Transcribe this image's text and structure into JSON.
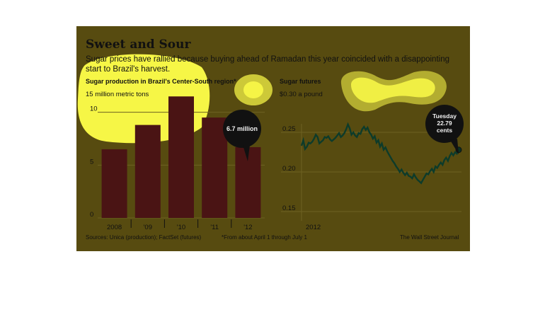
{
  "header": {
    "title": "Sweet and Sour",
    "subtitle": "Sugar prices have rallied because buying ahead of Ramadan this year coincided with a disappointing start to Brazil's harvest."
  },
  "colors": {
    "background": "#574b10",
    "bar": "#4a1414",
    "line": "#0d3b2a",
    "highlight": "#ffff4a",
    "callout": "#111111"
  },
  "chart_data": [
    {
      "type": "bar",
      "title": "Sugar production in Brazil's Center-South region*",
      "unit_label": "15 million metric tons",
      "categories": [
        "2008",
        "'09",
        "'10",
        "'11",
        "'12"
      ],
      "values": [
        6.5,
        8.8,
        11.5,
        9.5,
        6.7
      ],
      "ylim": [
        0,
        15
      ],
      "yticks": [
        "0",
        "5",
        "10"
      ],
      "ytick_values": [
        0,
        5,
        10
      ],
      "callout": "6.7 million",
      "footnote": "*From about April 1 through July 1"
    },
    {
      "type": "line",
      "title": "Sugar futures",
      "unit_label": "$0.30 a pound",
      "x_label": "2012",
      "ylim": [
        0.15,
        0.3
      ],
      "yticks": [
        "0.25",
        "0.20",
        "0.15"
      ],
      "ytick_values": [
        0.25,
        0.2,
        0.15
      ],
      "callout": [
        "Tuesday",
        "22.79",
        "cents"
      ],
      "values": [
        0.233,
        0.24,
        0.229,
        0.232,
        0.237,
        0.236,
        0.238,
        0.242,
        0.247,
        0.244,
        0.236,
        0.238,
        0.24,
        0.244,
        0.243,
        0.245,
        0.241,
        0.239,
        0.241,
        0.243,
        0.246,
        0.249,
        0.244,
        0.246,
        0.249,
        0.254,
        0.26,
        0.255,
        0.247,
        0.25,
        0.246,
        0.244,
        0.249,
        0.248,
        0.254,
        0.257,
        0.253,
        0.256,
        0.25,
        0.247,
        0.242,
        0.245,
        0.237,
        0.24,
        0.232,
        0.236,
        0.228,
        0.231,
        0.226,
        0.222,
        0.218,
        0.214,
        0.211,
        0.207,
        0.204,
        0.2,
        0.203,
        0.199,
        0.196,
        0.199,
        0.195,
        0.194,
        0.192,
        0.197,
        0.193,
        0.19,
        0.188,
        0.186,
        0.19,
        0.194,
        0.198,
        0.197,
        0.201,
        0.204,
        0.2,
        0.207,
        0.205,
        0.209,
        0.212,
        0.209,
        0.215,
        0.218,
        0.214,
        0.22,
        0.224,
        0.221,
        0.225,
        0.223,
        0.2279
      ]
    }
  ],
  "footer": {
    "sources": "Sources: Unica (production); FactSet (futures)",
    "footnote": "*From about April 1 through July 1",
    "credit": "The Wall Street Journal"
  }
}
